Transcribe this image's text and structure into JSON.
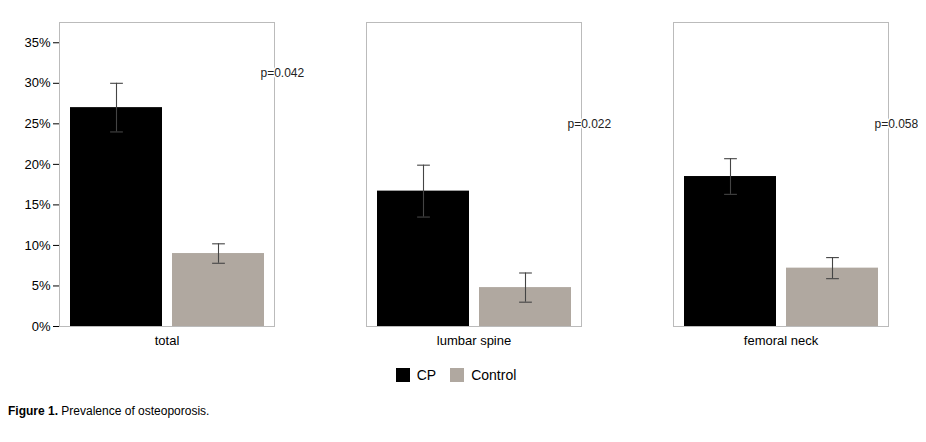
{
  "chart_data": {
    "type": "bar",
    "categories": [
      "total",
      "lumbar spine",
      "femoral neck"
    ],
    "series": [
      {
        "name": "CP",
        "color": "#000000",
        "values": [
          0.27,
          0.167,
          0.185
        ],
        "errors": [
          0.03,
          0.032,
          0.022
        ]
      },
      {
        "name": "Control",
        "color": "#b0a8a0",
        "values": [
          0.09,
          0.048,
          0.072
        ],
        "errors": [
          0.012,
          0.018,
          0.013
        ]
      }
    ],
    "annotations": [
      {
        "text": "p=0.042",
        "category": "total",
        "y": 0.308
      },
      {
        "text": "p=0.022",
        "category": "lumbar spine",
        "y": 0.245
      },
      {
        "text": "p=0.058",
        "category": "femoral neck",
        "y": 0.245
      }
    ],
    "ylim": [
      0,
      0.375
    ],
    "yticks": [
      {
        "value": 0.0,
        "label": "0%"
      },
      {
        "value": 0.05,
        "label": "5%"
      },
      {
        "value": 0.1,
        "label": "10%"
      },
      {
        "value": 0.15,
        "label": "15%"
      },
      {
        "value": 0.2,
        "label": "20%"
      },
      {
        "value": 0.25,
        "label": "25%"
      },
      {
        "value": 0.3,
        "label": "30%"
      },
      {
        "value": 0.35,
        "label": "35%"
      }
    ],
    "grid": false,
    "legend": "bottom",
    "figure_label": "Figure 1.",
    "caption": "Prevalence of osteoporosis."
  }
}
